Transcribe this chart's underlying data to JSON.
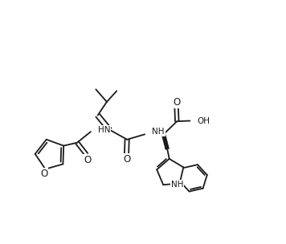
{
  "bg_color": "#ffffff",
  "line_color": "#1a1a1a",
  "lw": 1.3,
  "fs": 7.5,
  "fw": 3.56,
  "fh": 3.04,
  "dpi": 100,
  "xlim": [
    -0.5,
    10.5
  ],
  "ylim": [
    -0.5,
    8.5
  ]
}
